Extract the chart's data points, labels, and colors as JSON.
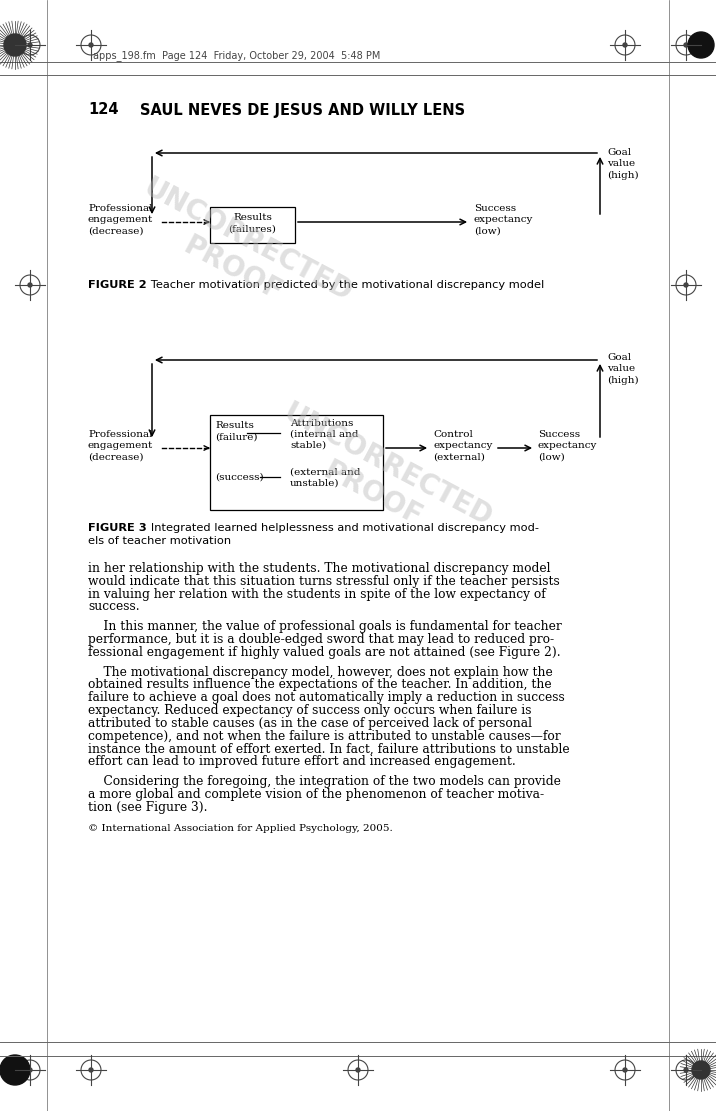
{
  "page_bg": "#ffffff",
  "header_text": "apps_198.fm  Page 124  Friday, October 29, 2004  5:48 PM",
  "page_number": "124",
  "page_heading": "SAUL NEVES DE JESUS AND WILLY LENS",
  "text_color": "#000000",
  "fig_fontsize": 7.5,
  "body_fontsize": 8.8,
  "caption_fontsize": 8.2,
  "header_fontsize": 7.0,
  "copyright_text": "© International Association for Applied Psychology, 2005.",
  "fig2_caption_bold": "FIGURE 2",
  "fig2_caption_rest": "   Teacher motivation predicted by the motivational discrepancy model",
  "fig3_caption_bold": "FIGURE 3",
  "fig3_caption_rest": "   Integrated learned helplessness and motivational discrepancy mod-\nels of teacher motivation",
  "body_lines": [
    "in her relationship with the students. The motivational discrepancy model",
    "would indicate that this situation turns stressful only if the teacher persists",
    "in valuing her relation with the students in spite of the low expectancy of",
    "success.",
    " ",
    "    In this manner, the value of professional goals is fundamental for teacher",
    "performance, but it is a double-edged sword that may lead to reduced pro-",
    "fessional engagement if highly valued goals are not attained (see Figure 2).",
    " ",
    "    The motivational discrepancy model, however, does not explain how the",
    "obtained results influence the expectations of the teacher. In addition, the",
    "failure to achieve a goal does not automatically imply a reduction in success",
    "expectancy. Reduced expectancy of success only occurs when failure is",
    "attributed to stable causes (as in the case of perceived lack of personal",
    "competence), and not when the failure is attributed to unstable causes—for",
    "instance the amount of effort exerted. In fact, failure attributions to unstable",
    "effort can lead to improved future effort and increased engagement.",
    " ",
    "    Considering the foregoing, the integration of the two models can provide",
    "a more global and complete vision of the phenomenon of teacher motiva-",
    "tion (see Figure 3)."
  ]
}
